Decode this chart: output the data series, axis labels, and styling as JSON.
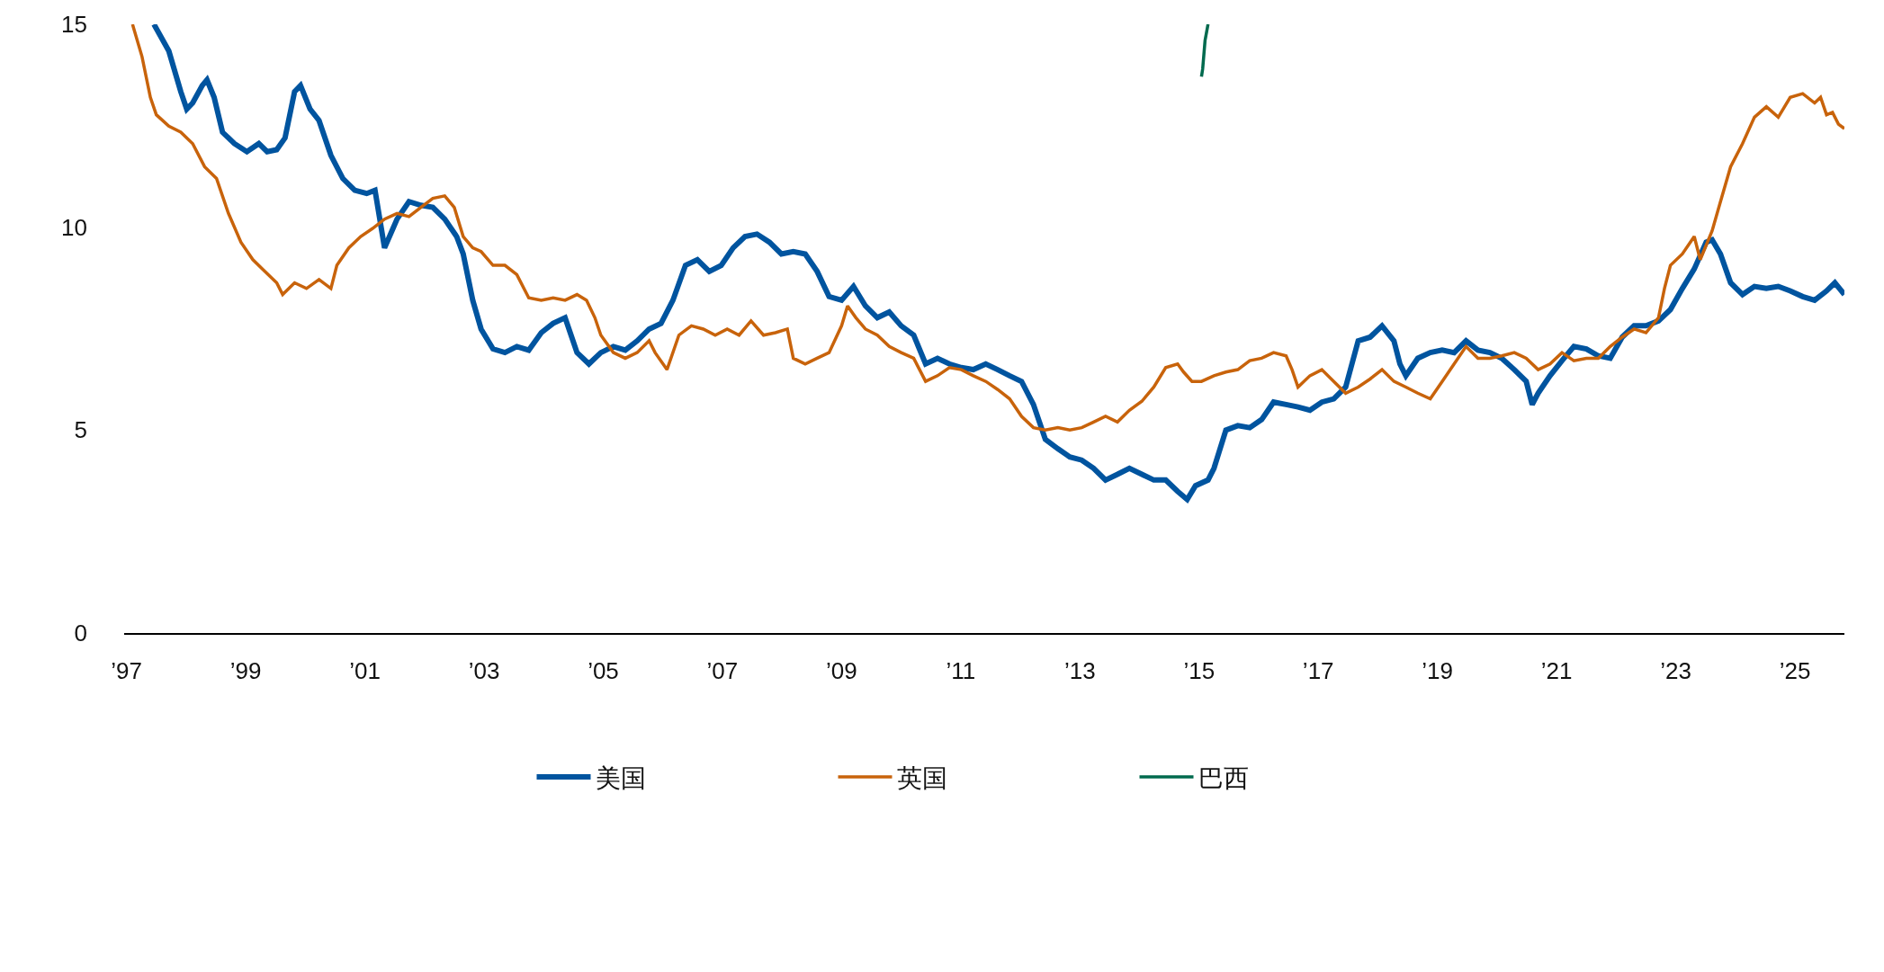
{
  "chart_data": {
    "type": "line",
    "xlim": [
      1996.96,
      2025.83
    ],
    "xticks": [
      {
        "value": 1997,
        "label": "’97"
      },
      {
        "value": 1999,
        "label": "’99"
      },
      {
        "value": 2001,
        "label": "’01"
      },
      {
        "value": 2003,
        "label": "’03"
      },
      {
        "value": 2005,
        "label": "’05"
      },
      {
        "value": 2007,
        "label": "’07"
      },
      {
        "value": 2009,
        "label": "’09"
      },
      {
        "value": 2011,
        "label": "’11"
      },
      {
        "value": 2013,
        "label": "’13"
      },
      {
        "value": 2015,
        "label": "’15"
      },
      {
        "value": 2017,
        "label": "’17"
      },
      {
        "value": 2019,
        "label": "’19"
      },
      {
        "value": 2021,
        "label": "’21"
      },
      {
        "value": 2023,
        "label": "’23"
      },
      {
        "value": 2025,
        "label": "’25"
      }
    ],
    "ylim": [
      0,
      15
    ],
    "yticks": [
      0,
      5,
      10,
      15
    ],
    "legend": "bottom",
    "line_style": "solid",
    "series": [
      {
        "name": "美国",
        "color": "#00549f",
        "x": [
          1997.46,
          1997.71,
          1997.91,
          1998.01,
          1998.11,
          1998.27,
          1998.35,
          1998.47,
          1998.61,
          1998.81,
          1999.02,
          1999.22,
          1999.36,
          1999.52,
          1999.66,
          1999.82,
          1999.92,
          2000.08,
          2000.23,
          2000.43,
          2000.63,
          2000.83,
          2001.03,
          2001.17,
          2001.33,
          2001.54,
          2001.74,
          2001.94,
          2002.14,
          2002.34,
          2002.54,
          2002.65,
          2002.81,
          2002.95,
          2003.15,
          2003.35,
          2003.55,
          2003.75,
          2003.96,
          2004.16,
          2004.36,
          2004.46,
          2004.56,
          2004.76,
          2004.96,
          2005.17,
          2005.37,
          2005.57,
          2005.77,
          2005.97,
          2006.17,
          2006.38,
          2006.58,
          2006.78,
          2006.98,
          2007.18,
          2007.38,
          2007.58,
          2007.79,
          2007.99,
          2008.19,
          2008.39,
          2008.59,
          2008.79,
          2009.0,
          2009.2,
          2009.4,
          2009.6,
          2009.8,
          2010.0,
          2010.21,
          2010.41,
          2010.61,
          2010.81,
          2011.01,
          2011.21,
          2011.42,
          2011.62,
          2011.82,
          2012.02,
          2012.22,
          2012.42,
          2012.63,
          2012.83,
          2013.03,
          2013.23,
          2013.43,
          2013.63,
          2013.83,
          2014.04,
          2014.24,
          2014.44,
          2014.64,
          2014.8,
          2014.94,
          2015.15,
          2015.25,
          2015.45,
          2015.65,
          2015.85,
          2016.05,
          2016.25,
          2016.46,
          2016.66,
          2016.86,
          2017.06,
          2017.26,
          2017.46,
          2017.67,
          2017.87,
          2018.07,
          2018.27,
          2018.37,
          2018.47,
          2018.67,
          2018.88,
          2019.08,
          2019.28,
          2019.48,
          2019.68,
          2019.88,
          2020.08,
          2020.29,
          2020.49,
          2020.59,
          2020.69,
          2020.89,
          2021.09,
          2021.29,
          2021.5,
          2021.7,
          2021.9,
          2022.1,
          2022.3,
          2022.5,
          2022.71,
          2022.91,
          2023.11,
          2023.31,
          2023.51,
          2023.61,
          2023.75,
          2023.92,
          2024.12,
          2024.32,
          2024.52,
          2024.72,
          2024.92,
          2025.13,
          2025.33,
          2025.53,
          2025.67,
          2025.83
        ],
        "values": [
          15,
          14.34,
          13.34,
          12.91,
          13.06,
          13.49,
          13.63,
          13.2,
          12.34,
          12.06,
          11.86,
          12.06,
          11.86,
          11.91,
          12.2,
          13.34,
          13.49,
          12.91,
          12.63,
          11.77,
          11.2,
          10.91,
          10.83,
          10.91,
          9.49,
          10.2,
          10.63,
          10.54,
          10.49,
          10.2,
          9.77,
          9.34,
          8.2,
          7.49,
          7.0,
          6.91,
          7.06,
          6.97,
          7.4,
          7.63,
          7.77,
          7.34,
          6.91,
          6.63,
          6.91,
          7.06,
          6.97,
          7.2,
          7.49,
          7.63,
          8.2,
          9.06,
          9.2,
          8.91,
          9.06,
          9.49,
          9.77,
          9.83,
          9.63,
          9.34,
          9.4,
          9.34,
          8.91,
          8.29,
          8.2,
          8.54,
          8.06,
          7.77,
          7.91,
          7.57,
          7.34,
          6.63,
          6.77,
          6.63,
          6.54,
          6.49,
          6.63,
          6.49,
          6.34,
          6.2,
          5.63,
          4.77,
          4.54,
          4.34,
          4.26,
          4.06,
          3.77,
          3.91,
          4.06,
          3.91,
          3.77,
          3.77,
          3.49,
          3.29,
          3.63,
          3.77,
          4.06,
          5.0,
          5.11,
          5.06,
          5.26,
          5.69,
          5.63,
          5.57,
          5.49,
          5.69,
          5.77,
          6.06,
          7.2,
          7.29,
          7.57,
          7.2,
          6.63,
          6.34,
          6.77,
          6.91,
          6.97,
          6.91,
          7.2,
          6.97,
          6.91,
          6.77,
          6.49,
          6.2,
          5.63,
          5.91,
          6.34,
          6.71,
          7.06,
          7.0,
          6.83,
          6.77,
          7.29,
          7.57,
          7.57,
          7.69,
          7.97,
          8.49,
          8.97,
          9.63,
          9.69,
          9.34,
          8.63,
          8.34,
          8.54,
          8.49,
          8.54,
          8.43,
          8.29,
          8.2,
          8.43,
          8.63,
          8.34
        ]
      },
      {
        "name": "英国",
        "color": "#c8630b",
        "x": [
          1997.1,
          1997.26,
          1997.4,
          1997.5,
          1997.71,
          1997.91,
          1998.11,
          1998.31,
          1998.51,
          1998.71,
          1998.92,
          1999.12,
          1999.32,
          1999.52,
          1999.62,
          1999.82,
          2000.02,
          2000.23,
          2000.43,
          2000.53,
          2000.73,
          2000.93,
          2001.13,
          2001.33,
          2001.54,
          2001.74,
          2001.94,
          2002.14,
          2002.34,
          2002.5,
          2002.65,
          2002.81,
          2002.95,
          2003.15,
          2003.35,
          2003.55,
          2003.75,
          2003.96,
          2004.16,
          2004.36,
          2004.56,
          2004.72,
          2004.86,
          2004.96,
          2005.17,
          2005.37,
          2005.57,
          2005.77,
          2005.87,
          2006.07,
          2006.27,
          2006.48,
          2006.68,
          2006.88,
          2007.08,
          2007.28,
          2007.48,
          2007.69,
          2007.89,
          2008.09,
          2008.19,
          2008.39,
          2008.59,
          2008.79,
          2009.0,
          2009.1,
          2009.24,
          2009.4,
          2009.6,
          2009.8,
          2010.0,
          2010.21,
          2010.41,
          2010.61,
          2010.81,
          2011.01,
          2011.21,
          2011.42,
          2011.62,
          2011.82,
          2012.02,
          2012.22,
          2012.42,
          2012.63,
          2012.83,
          2013.03,
          2013.23,
          2013.43,
          2013.63,
          2013.83,
          2014.04,
          2014.24,
          2014.44,
          2014.64,
          2014.74,
          2014.88,
          2015.04,
          2015.25,
          2015.45,
          2015.65,
          2015.85,
          2016.05,
          2016.25,
          2016.46,
          2016.56,
          2016.66,
          2016.86,
          2017.06,
          2017.26,
          2017.46,
          2017.67,
          2017.87,
          2018.07,
          2018.27,
          2018.47,
          2018.67,
          2018.88,
          2019.08,
          2019.28,
          2019.48,
          2019.68,
          2019.88,
          2020.08,
          2020.29,
          2020.49,
          2020.69,
          2020.89,
          2021.09,
          2021.29,
          2021.5,
          2021.7,
          2021.9,
          2022.1,
          2022.3,
          2022.5,
          2022.71,
          2022.81,
          2022.91,
          2023.11,
          2023.31,
          2023.41,
          2023.61,
          2023.75,
          2023.92,
          2024.12,
          2024.32,
          2024.52,
          2024.72,
          2024.92,
          2025.13,
          2025.33,
          2025.43,
          2025.53,
          2025.63,
          2025.73,
          2025.83
        ],
        "values": [
          15,
          14.2,
          13.2,
          12.77,
          12.49,
          12.34,
          12.06,
          11.49,
          11.2,
          10.34,
          9.63,
          9.2,
          8.91,
          8.63,
          8.34,
          8.63,
          8.49,
          8.71,
          8.49,
          9.06,
          9.49,
          9.77,
          9.97,
          10.2,
          10.34,
          10.26,
          10.49,
          10.71,
          10.77,
          10.49,
          9.77,
          9.49,
          9.4,
          9.06,
          9.06,
          8.83,
          8.26,
          8.2,
          8.26,
          8.2,
          8.34,
          8.2,
          7.77,
          7.34,
          6.91,
          6.77,
          6.91,
          7.2,
          6.91,
          6.49,
          7.34,
          7.57,
          7.49,
          7.34,
          7.49,
          7.34,
          7.69,
          7.34,
          7.4,
          7.49,
          6.77,
          6.63,
          6.77,
          6.91,
          7.57,
          8.06,
          7.77,
          7.49,
          7.34,
          7.06,
          6.91,
          6.77,
          6.2,
          6.34,
          6.54,
          6.49,
          6.34,
          6.2,
          6.0,
          5.77,
          5.34,
          5.06,
          5.0,
          5.06,
          5.0,
          5.06,
          5.2,
          5.34,
          5.2,
          5.49,
          5.71,
          6.06,
          6.54,
          6.63,
          6.43,
          6.2,
          6.2,
          6.34,
          6.43,
          6.49,
          6.71,
          6.77,
          6.91,
          6.83,
          6.49,
          6.06,
          6.34,
          6.49,
          6.2,
          5.91,
          6.06,
          6.26,
          6.49,
          6.2,
          6.06,
          5.91,
          5.77,
          6.2,
          6.63,
          7.06,
          6.77,
          6.77,
          6.83,
          6.91,
          6.77,
          6.49,
          6.63,
          6.91,
          6.71,
          6.77,
          6.77,
          7.06,
          7.29,
          7.49,
          7.4,
          7.77,
          8.49,
          9.06,
          9.34,
          9.77,
          9.2,
          9.91,
          10.63,
          11.49,
          12.06,
          12.71,
          12.97,
          12.71,
          13.2,
          13.29,
          13.06,
          13.2,
          12.77,
          12.83,
          12.54,
          12.43
        ]
      },
      {
        "name": "巴西",
        "color": "#006a4e",
        "x": [
          2015.04,
          2015.06,
          2015.1,
          2015.15
        ],
        "values": [
          13.71,
          13.9,
          14.6,
          15
        ]
      }
    ]
  }
}
